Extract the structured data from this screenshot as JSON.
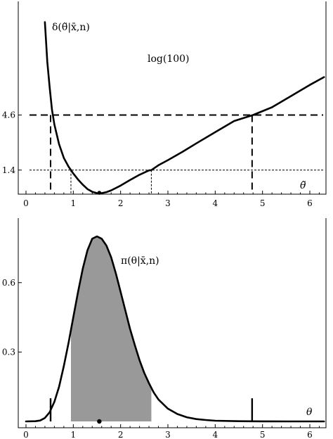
{
  "chart_data": [
    {
      "type": "line",
      "title": "",
      "xlabel": "θ̃",
      "ylabel": "",
      "curve_label": "δ(θ̃|x̄,n)",
      "xlim": [
        0,
        6.3
      ],
      "ylim": [
        0,
        11.2
      ],
      "x_ticks": [
        0,
        1,
        2,
        3,
        4,
        5,
        6
      ],
      "x_tick_labels": [
        "0",
        "1",
        "2",
        "3",
        "4",
        "5",
        "6"
      ],
      "y_ticks": [
        1.4,
        4.6
      ],
      "y_tick_labels": [
        "1.4",
        "4.6"
      ],
      "series": [
        {
          "x": [
            0.4,
            0.45,
            0.5,
            0.55,
            0.6,
            0.7,
            0.8,
            0.9,
            0.95,
            1.0,
            1.1,
            1.2,
            1.3,
            1.4,
            1.5,
            1.55,
            1.6,
            1.7,
            1.8,
            2.0,
            2.2,
            2.4,
            2.6,
            2.65,
            2.8,
            3.0,
            3.3,
            3.6,
            4.0,
            4.4,
            4.8,
            5.2,
            5.6,
            6.0,
            6.3
          ],
          "y": [
            10.0,
            7.7,
            6.2,
            4.9,
            4.05,
            2.9,
            2.1,
            1.6,
            1.4,
            1.2,
            0.85,
            0.55,
            0.3,
            0.14,
            0.06,
            0.05,
            0.06,
            0.12,
            0.22,
            0.5,
            0.82,
            1.13,
            1.38,
            1.4,
            1.68,
            1.98,
            2.45,
            2.95,
            3.6,
            4.25,
            4.6,
            5.05,
            5.7,
            6.35,
            6.8
          ]
        }
      ],
      "hlines": [
        {
          "y": 4.6,
          "style": "dashed-thick",
          "label": "log(100)"
        },
        {
          "y": 1.4,
          "style": "dashed-thin"
        }
      ],
      "vlines": [
        {
          "x": 0.52,
          "ymax": 4.6,
          "style": "dashed-thick"
        },
        {
          "x": 4.78,
          "ymax": 4.6,
          "style": "dashed-thick"
        },
        {
          "x": 0.95,
          "ymax": 1.4,
          "style": "dashed-thin"
        },
        {
          "x": 2.65,
          "ymax": 1.4,
          "style": "dashed-thin"
        },
        {
          "x": 1.55,
          "ymax": 0.05,
          "style": "dashed-thin"
        }
      ],
      "point": {
        "x": 1.55,
        "y": 0.0
      },
      "grid": false
    },
    {
      "type": "area",
      "title": "",
      "xlabel": "θ",
      "ylabel": "",
      "curve_label": "π(θ|x̄,n)",
      "xlim": [
        0,
        6.3
      ],
      "ylim": [
        0,
        0.8
      ],
      "x_ticks": [
        0,
        1,
        2,
        3,
        4,
        5,
        6
      ],
      "x_tick_labels": [
        "0",
        "1",
        "2",
        "3",
        "4",
        "5",
        "6"
      ],
      "y_ticks": [
        0.3,
        0.6
      ],
      "y_tick_labels": [
        "0.3",
        "0.6"
      ],
      "series": [
        {
          "x": [
            0.0,
            0.2,
            0.3,
            0.4,
            0.5,
            0.6,
            0.7,
            0.8,
            0.9,
            1.0,
            1.1,
            1.2,
            1.3,
            1.4,
            1.5,
            1.6,
            1.7,
            1.8,
            1.9,
            2.0,
            2.1,
            2.2,
            2.3,
            2.4,
            2.5,
            2.6,
            2.7,
            2.8,
            3.0,
            3.2,
            3.4,
            3.6,
            3.8,
            4.0,
            4.5,
            5.0,
            5.5,
            6.0,
            6.3
          ],
          "y": [
            0.0,
            0.001,
            0.004,
            0.015,
            0.04,
            0.085,
            0.15,
            0.24,
            0.34,
            0.45,
            0.56,
            0.66,
            0.74,
            0.79,
            0.8,
            0.79,
            0.76,
            0.71,
            0.64,
            0.56,
            0.48,
            0.4,
            0.33,
            0.265,
            0.21,
            0.165,
            0.125,
            0.095,
            0.055,
            0.032,
            0.018,
            0.01,
            0.006,
            0.003,
            0.001,
            0.0003,
            0.0001,
            0.0,
            0.0
          ]
        }
      ],
      "hpd_interval": [
        0.95,
        2.65
      ],
      "interval_marks": [
        {
          "x": 0.52,
          "height": 0.1
        },
        {
          "x": 4.78,
          "height": 0.1
        }
      ],
      "point": {
        "x": 1.55,
        "y": 0.0
      },
      "grid": false
    }
  ]
}
